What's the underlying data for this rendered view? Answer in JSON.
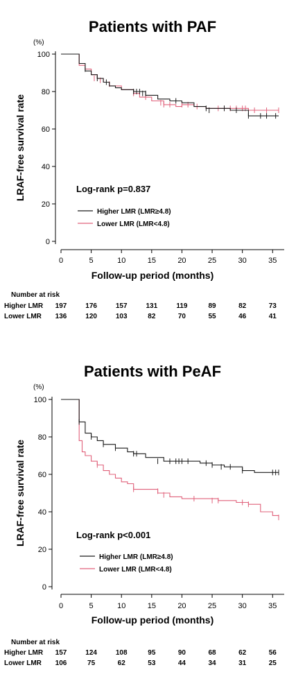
{
  "chart_data": [
    {
      "type": "line",
      "subtype": "kaplan-meier",
      "title": "Patients with PAF",
      "unit": "(%)",
      "xlabel": "Follow-up  period (months)",
      "ylabel": "LRAF-free survival rate",
      "xlim": [
        0,
        36
      ],
      "ylim": [
        0,
        100
      ],
      "xticks": [
        0,
        5,
        10,
        15,
        20,
        25,
        30,
        35
      ],
      "yticks": [
        0,
        20,
        40,
        60,
        80,
        100
      ],
      "annotation": "Log-rank p=0.837",
      "colors": {
        "higher": "#1a1a1a",
        "lower": "#e0607a"
      },
      "series": [
        {
          "name": "Higher LMR (LMR≥4.8)",
          "x": [
            0,
            3,
            3,
            4,
            5,
            6,
            7,
            8,
            9,
            10,
            12,
            14,
            16,
            18,
            20,
            22,
            24,
            26,
            28,
            30,
            31,
            36
          ],
          "y": [
            100,
            100,
            95,
            91,
            89,
            87,
            85,
            83,
            82,
            81,
            80,
            78,
            76,
            75,
            74,
            72,
            71,
            71,
            70,
            70,
            67,
            67
          ],
          "censor_x": [
            4,
            6,
            7.5,
            12,
            12.5,
            13,
            13.5,
            14,
            19,
            24,
            24.5,
            27,
            29,
            31,
            33,
            34,
            35.5
          ],
          "censor_y": [
            92,
            87,
            85,
            80,
            80,
            80,
            79,
            79,
            75,
            71,
            70,
            71,
            70,
            67,
            67,
            67,
            67
          ]
        },
        {
          "name": "Lower LMR (LMR<4.8)",
          "x": [
            0,
            3,
            3,
            4,
            5,
            6,
            7,
            8,
            10,
            12,
            13,
            15,
            17,
            19,
            20,
            22,
            24,
            28,
            31,
            36
          ],
          "y": [
            100,
            100,
            94,
            92,
            89,
            87,
            85,
            83,
            81,
            79,
            77,
            75,
            73,
            72,
            73,
            72,
            71,
            71,
            70,
            70
          ],
          "censor_x": [
            5.5,
            6.5,
            8,
            12,
            14,
            16.5,
            17,
            18,
            20,
            21,
            22.5,
            26,
            27,
            28,
            29,
            30,
            30.5,
            32,
            34,
            36
          ],
          "censor_y": [
            87,
            86,
            84,
            79,
            77,
            74,
            73,
            73,
            73,
            73,
            72,
            71,
            71,
            71,
            71,
            71,
            71,
            70,
            70,
            70
          ]
        }
      ],
      "risk_table": {
        "heading": "Number at risk",
        "times": [
          0,
          5,
          10,
          15,
          20,
          25,
          30,
          35
        ],
        "rows": [
          {
            "label": "Higher LMR",
            "values": [
              "197",
              "176",
              "157",
              "131",
              "119",
              "89",
              "82",
              "73"
            ]
          },
          {
            "label": "Lower LMR",
            "values": [
              "136",
              "120",
              "103",
              "82",
              "70",
              "55",
              "46",
              "41"
            ]
          }
        ]
      }
    },
    {
      "type": "line",
      "subtype": "kaplan-meier",
      "title": "Patients with PeAF",
      "unit": "(%)",
      "xlabel": "Follow-up  period (months)",
      "ylabel": "LRAF-free survival rate",
      "xlim": [
        0,
        36
      ],
      "ylim": [
        0,
        100
      ],
      "xticks": [
        0,
        5,
        10,
        15,
        20,
        25,
        30,
        35
      ],
      "yticks": [
        0,
        20,
        40,
        60,
        80,
        100
      ],
      "annotation": "Log-rank p<0.001",
      "colors": {
        "higher": "#1a1a1a",
        "lower": "#e0607a"
      },
      "series": [
        {
          "name": "Higher LMR (LMR≥4.8)",
          "x": [
            0,
            3,
            3,
            4,
            5,
            6,
            7,
            9,
            11,
            12,
            14,
            17,
            20,
            23,
            25,
            27,
            30,
            32,
            36
          ],
          "y": [
            100,
            100,
            88,
            82,
            80,
            78,
            76,
            74,
            72,
            71,
            69,
            67,
            67,
            66,
            65,
            64,
            62,
            61,
            61
          ],
          "censor_x": [
            3,
            5,
            7,
            9,
            12,
            12.5,
            16,
            18,
            19,
            19.5,
            20,
            21,
            24,
            25,
            26.5,
            28,
            30,
            35,
            35.5,
            36
          ],
          "censor_y": [
            88,
            80,
            76,
            74,
            71,
            71,
            67,
            67,
            67,
            67,
            67,
            67,
            66,
            65,
            64,
            64,
            62,
            61,
            61,
            61
          ]
        },
        {
          "name": "Lower LMR (LMR<4.8)",
          "x": [
            0,
            3,
            3,
            3.5,
            4,
            5,
            6,
            7,
            8,
            9,
            10,
            11,
            12,
            15,
            16,
            18,
            20,
            23,
            26,
            29,
            31,
            33,
            35,
            36
          ],
          "y": [
            100,
            100,
            78,
            72,
            70,
            67,
            65,
            62,
            60,
            58,
            56,
            55,
            52,
            52,
            50,
            48,
            47,
            47,
            46,
            45,
            44,
            40,
            38,
            37
          ],
          "censor_x": [
            6,
            12,
            16,
            17,
            22,
            25,
            26,
            30,
            31,
            36
          ],
          "censor_y": [
            65,
            52,
            51,
            49,
            47,
            46,
            46,
            45,
            44,
            37
          ]
        }
      ],
      "risk_table": {
        "heading": "Number at risk",
        "times": [
          0,
          5,
          10,
          15,
          20,
          25,
          30,
          35
        ],
        "rows": [
          {
            "label": "Higher LMR",
            "values": [
              "157",
              "124",
              "108",
              "95",
              "90",
              "68",
              "62",
              "56"
            ]
          },
          {
            "label": "Lower LMR",
            "values": [
              "106",
              "75",
              "62",
              "53",
              "44",
              "34",
              "31",
              "25"
            ]
          }
        ]
      }
    }
  ]
}
